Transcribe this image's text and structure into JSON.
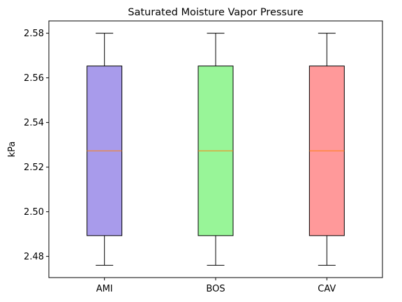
{
  "chart_data": {
    "type": "box",
    "title": "Saturated Moisture Vapor Pressure",
    "xlabel": "",
    "ylabel": "kPa",
    "ylim": [
      2.4705,
      2.5855
    ],
    "yticks": [
      "2.48",
      "2.50",
      "2.52",
      "2.54",
      "2.56",
      "2.58"
    ],
    "categories": [
      "AMI",
      "BOS",
      "CAV"
    ],
    "boxes": [
      {
        "category": "AMI",
        "whisker_low": 2.476,
        "q1": 2.4893,
        "median": 2.5273,
        "q3": 2.5653,
        "whisker_high": 2.58,
        "color": "#a89beb"
      },
      {
        "category": "BOS",
        "whisker_low": 2.476,
        "q1": 2.4893,
        "median": 2.5273,
        "q3": 2.5653,
        "whisker_high": 2.58,
        "color": "#98f598"
      },
      {
        "category": "CAV",
        "whisker_low": 2.476,
        "q1": 2.4893,
        "median": 2.5273,
        "q3": 2.5653,
        "whisker_high": 2.58,
        "color": "#ff999a"
      }
    ],
    "median_color": "#ff7f0e",
    "grid": false,
    "legend": "none"
  }
}
